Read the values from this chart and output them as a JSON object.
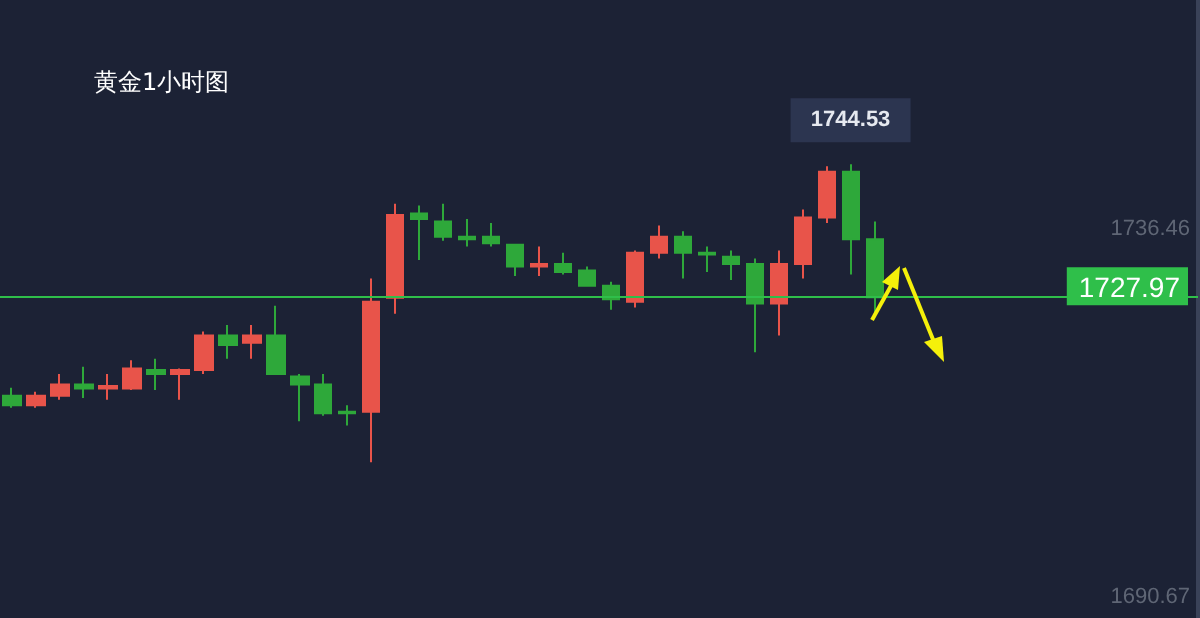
{
  "chart_data": {
    "type": "candlestick",
    "title": "黄金1小时图",
    "categories": [
      null,
      null,
      null,
      null,
      null,
      null,
      null,
      null,
      null,
      null,
      null,
      null,
      null,
      null,
      null,
      null,
      null,
      null,
      null,
      null,
      null,
      null,
      null,
      null,
      null,
      null,
      null,
      null,
      null,
      null,
      null,
      null,
      null,
      null,
      null,
      null,
      null,
      null,
      null,
      null,
      null,
      null,
      null,
      null,
      null,
      null,
      null,
      null,
      null,
      null
    ],
    "ohlc": [
      [
        1715.7,
        1716.7,
        1714.2,
        1714.5
      ],
      [
        1714.5,
        1716.2,
        1714.2,
        1715.7
      ],
      [
        1715.7,
        1718.4,
        1715.2,
        1717.1
      ],
      [
        1717.1,
        1719.3,
        1715.4,
        1716.6
      ],
      [
        1716.6,
        1718.4,
        1715.2,
        1716.9
      ],
      [
        1716.6,
        1720.1,
        1716.4,
        1719.1
      ],
      [
        1718.9,
        1720.3,
        1716.4,
        1718.4
      ],
      [
        1718.4,
        1719.1,
        1715.2,
        1718.9
      ],
      [
        1718.9,
        1723.7,
        1718.4,
        1723.2
      ],
      [
        1723.2,
        1724.5,
        1720.3,
        1722.0
      ],
      [
        1722.3,
        1724.5,
        1720.3,
        1723.2
      ],
      [
        1723.2,
        1726.9,
        1718.4,
        1718.4
      ],
      [
        1718.1,
        1718.4,
        1712.5,
        1717.1
      ],
      [
        1717.1,
        1718.4,
        1713.2,
        1713.5
      ],
      [
        1713.7,
        1714.5,
        1712.0,
        1713.5
      ],
      [
        1713.7,
        1730.3,
        1707.4,
        1727.4
      ],
      [
        1727.9,
        1739.6,
        1725.9,
        1738.2
      ],
      [
        1738.4,
        1739.4,
        1732.6,
        1737.7
      ],
      [
        1737.4,
        1739.6,
        1735.0,
        1735.5
      ],
      [
        1735.5,
        1737.7,
        1734.3,
        1735.2
      ],
      [
        1735.5,
        1737.2,
        1734.3,
        1734.7
      ],
      [
        1734.5,
        1734.5,
        1730.6,
        1731.8
      ],
      [
        1731.8,
        1734.3,
        1730.6,
        1732.1
      ],
      [
        1732.1,
        1733.5,
        1730.8,
        1731.1
      ],
      [
        1731.3,
        1731.8,
        1729.4,
        1729.4
      ],
      [
        1729.4,
        1729.9,
        1726.4,
        1727.7
      ],
      [
        1727.4,
        1733.8,
        1726.7,
        1733.5
      ],
      [
        1733.5,
        1736.9,
        1732.8,
        1735.5
      ],
      [
        1735.5,
        1736.2,
        1730.3,
        1733.5
      ],
      [
        1733.5,
        1734.3,
        1731.1,
        1733.3
      ],
      [
        1733.0,
        1733.8,
        1730.1,
        1732.1
      ],
      [
        1732.1,
        1732.8,
        1721.1,
        1727.2
      ],
      [
        1727.2,
        1733.8,
        1723.2,
        1732.1
      ],
      [
        1732.1,
        1738.9,
        1730.3,
        1737.9
      ],
      [
        1737.9,
        1744.3,
        1737.2,
        1743.6
      ],
      [
        1743.6,
        1744.53,
        1730.8,
        1735.2
      ],
      [
        1735.2,
        1737.4,
        1725.9,
        1727.97
      ],
      null,
      null,
      null,
      null,
      null,
      null,
      null,
      null,
      null,
      null,
      null,
      null,
      null
    ],
    "ylim": [
      1688,
      1765
    ],
    "yticks": [
      1690.67,
      1736.46
    ],
    "tick_labels": "y",
    "grid": false,
    "ref_lines": [
      {
        "axis": "y",
        "value": 1727.97,
        "label": "1727.97",
        "color": "#2fbf4a"
      }
    ],
    "annotations": [
      "1744.53"
    ]
  }
}
